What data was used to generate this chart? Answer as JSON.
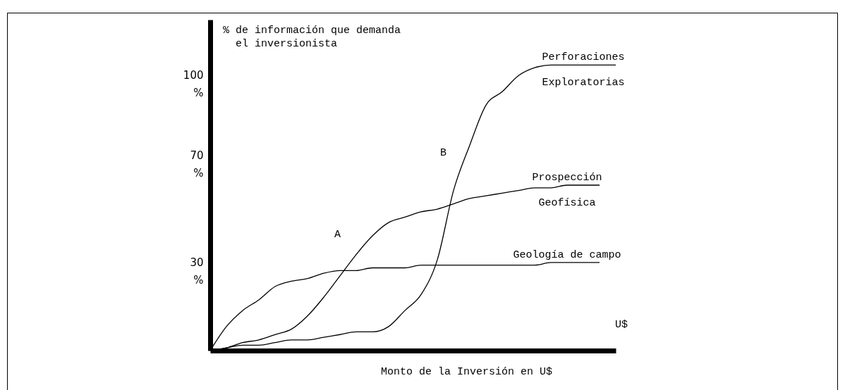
{
  "chart_data": {
    "type": "line",
    "ylabel": "% de información que demanda el inversionista",
    "xlabel": "Monto de la Inversión en U$",
    "categories": [
      null,
      null,
      null,
      null,
      null,
      null,
      null,
      null,
      null,
      null,
      null,
      null,
      null,
      null,
      null,
      null,
      null,
      null,
      null,
      null,
      null,
      null,
      null,
      null,
      null,
      null
    ],
    "series": [
      {
        "name": "Geología de campo",
        "color": "#000000",
        "values": [
          0,
          9,
          15,
          19,
          24,
          26,
          27,
          29,
          30,
          30,
          31,
          31,
          31,
          32,
          32,
          32,
          32,
          32,
          32,
          32,
          32,
          33,
          33,
          33,
          33,
          null
        ]
      },
      {
        "name": "Prospección\nGeofísica",
        "color": "#000000",
        "values": [
          0,
          1,
          3,
          4,
          6,
          8,
          13,
          20,
          28,
          36,
          43,
          48,
          50,
          52,
          53,
          55,
          57,
          58,
          59,
          60,
          61,
          61,
          62,
          62,
          62,
          null
        ]
      },
      {
        "name": "Perforaciones\nExploratorias",
        "color": "#000000",
        "values": [
          0,
          1,
          2,
          2,
          3,
          4,
          4,
          5,
          6,
          7,
          7,
          9,
          15,
          21,
          34,
          60,
          77,
          92,
          97,
          103,
          106,
          107,
          107,
          107,
          107,
          107
        ]
      }
    ],
    "ylim": [
      0,
      124
    ],
    "yticks": [
      {
        "value": 30,
        "label": "30\n%"
      },
      {
        "value": 70,
        "label": "70\n%"
      },
      {
        "value": 100,
        "label": "100\n%"
      }
    ],
    "annotations": [
      "A",
      "B",
      "U$"
    ],
    "grid": false,
    "marker": "none",
    "line_style": "solid"
  }
}
